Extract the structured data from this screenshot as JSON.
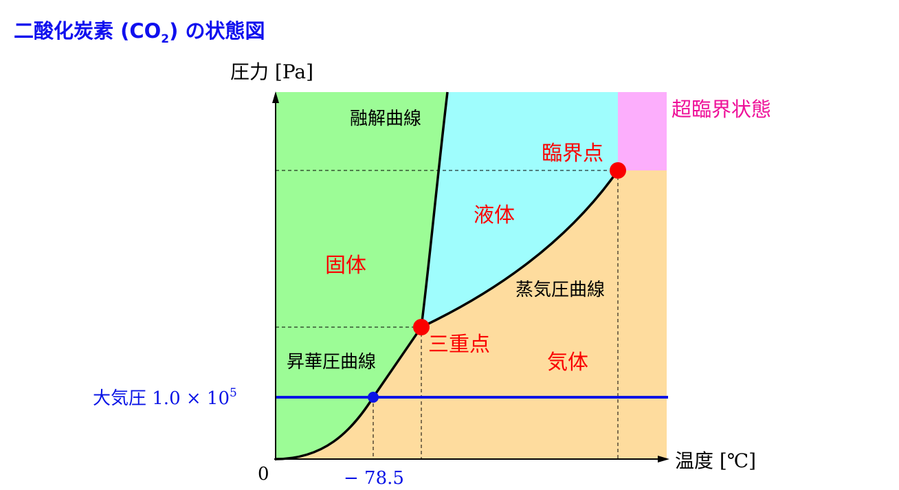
{
  "title": {
    "prefix": "二酸化炭素 (CO",
    "subscript": "2",
    "suffix": ") の状態図"
  },
  "axes": {
    "y_label": "圧力 [Pa]",
    "x_label": "温度 [℃]",
    "origin": "0",
    "x_tick": "− 78.5"
  },
  "atmosphere": {
    "label": "大気圧 1.0 × 10",
    "exponent": "5"
  },
  "regions": {
    "solid": "固体",
    "liquid": "液体",
    "gas": "気体",
    "supercritical": "超臨界状態"
  },
  "curves": {
    "melting": "融解曲線",
    "vapor": "蒸気圧曲線",
    "sublimation": "昇華圧曲線"
  },
  "points": {
    "triple": "三重点",
    "critical": "臨界点"
  },
  "colors": {
    "title": "#1010ee",
    "solid": "#9cfc96",
    "liquid": "#9ffdfd",
    "gas": "#fedc9e",
    "supercritical": "#fcaefc",
    "marker": "#fa0000",
    "atmosphere": "#0a14e6",
    "supercritical_label": "#ee1199"
  }
}
